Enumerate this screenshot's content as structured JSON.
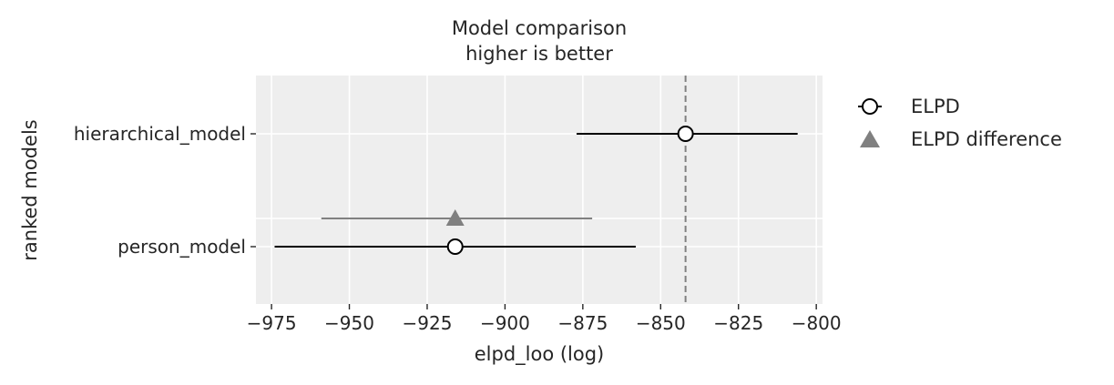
{
  "chart_data": {
    "type": "scatter",
    "title": "Model comparison",
    "subtitle": "higher is better",
    "xlabel": "elpd_loo (log)",
    "ylabel": "ranked models",
    "xlim": [
      -980,
      -798
    ],
    "x_ticks": [
      -975,
      -950,
      -925,
      -900,
      -875,
      -850,
      -825,
      -800
    ],
    "x_tick_labels": [
      "−975",
      "−950",
      "−925",
      "−900",
      "−875",
      "−850",
      "−825",
      "−800"
    ],
    "categories": [
      "hierarchical_model",
      "person_model"
    ],
    "grid": true,
    "legend_position": "right",
    "reference_line_x": -842,
    "series": [
      {
        "name": "ELPD",
        "marker": "circle",
        "color": "#000000",
        "points": [
          {
            "model": "hierarchical_model",
            "x": -842,
            "xmin": -877,
            "xmax": -806
          },
          {
            "model": "person_model",
            "x": -916,
            "xmin": -974,
            "xmax": -858
          }
        ]
      },
      {
        "name": "ELPD difference",
        "marker": "triangle",
        "color": "#808080",
        "points": [
          {
            "model": "person_model",
            "x": -916,
            "xmin": -959,
            "xmax": -872
          }
        ]
      }
    ],
    "colors": {
      "background": "#eeeeee",
      "grid": "#ffffff",
      "dashed_line": "#808080"
    }
  }
}
